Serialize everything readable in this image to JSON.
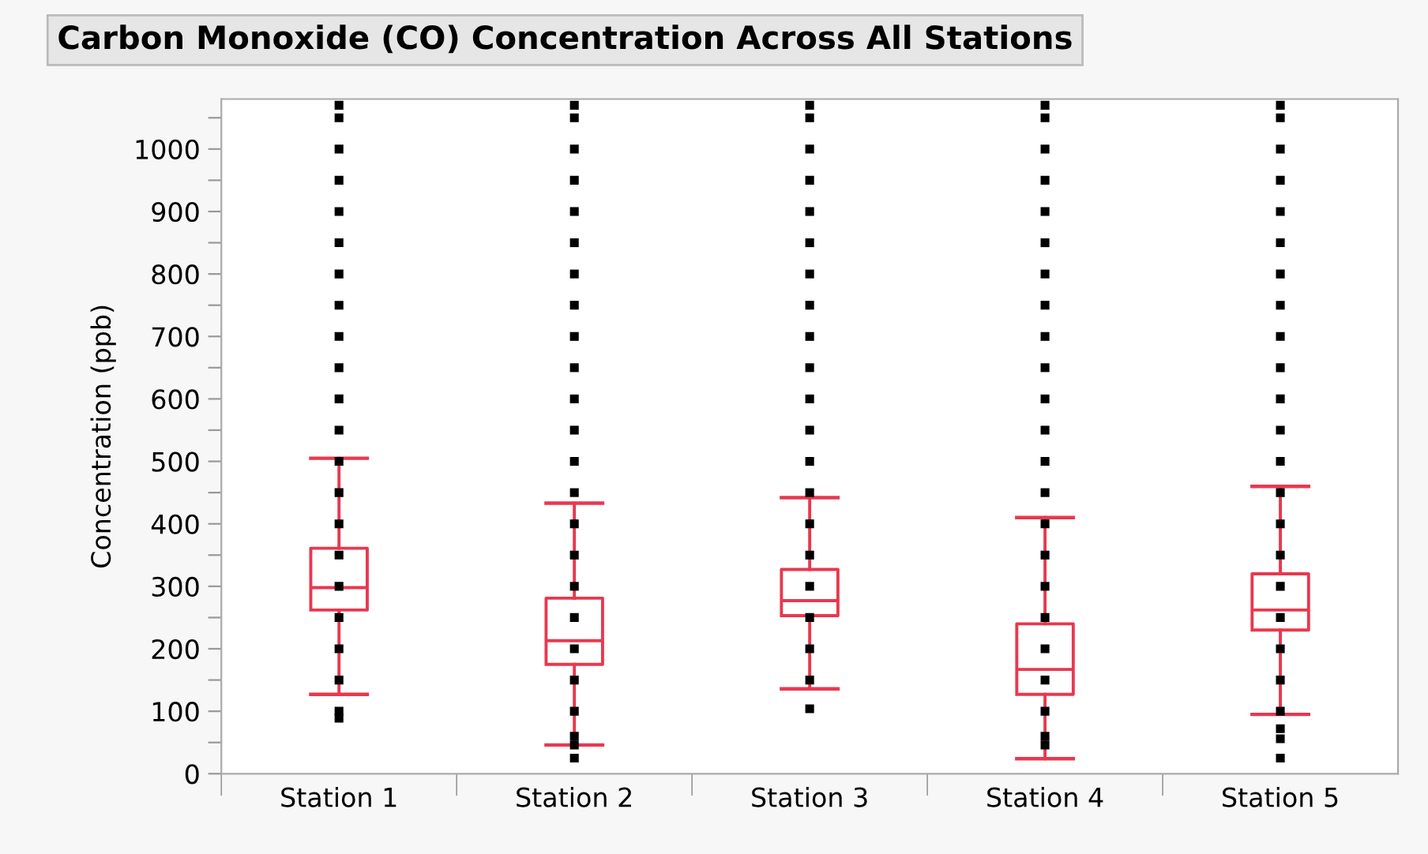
{
  "chart_data": {
    "type": "box",
    "title": "Carbon Monoxide (CO) Concentration Across All Stations",
    "ylabel": "Concentration (ppb)",
    "categories": [
      "Station 1",
      "Station 2",
      "Station 3",
      "Station 4",
      "Station 5"
    ],
    "color": "#e8384f",
    "boxes": [
      {
        "low": 127,
        "q1": 262,
        "median": 298,
        "q3": 361,
        "high": 505
      },
      {
        "low": 46,
        "q1": 175,
        "median": 213,
        "q3": 281,
        "high": 433
      },
      {
        "low": 136,
        "q1": 253,
        "median": 277,
        "q3": 327,
        "high": 442
      },
      {
        "low": 24,
        "q1": 127,
        "median": 167,
        "q3": 240,
        "high": 410
      },
      {
        "low": 95,
        "q1": 230,
        "median": 262,
        "q3": 320,
        "high": 460
      }
    ],
    "series": [
      {
        "type": "scatter",
        "color": "#000000",
        "x": [
          "Station 1",
          "Station 1",
          "Station 1",
          "Station 1",
          "Station 1",
          "Station 1",
          "Station 1",
          "Station 1",
          "Station 1",
          "Station 1",
          "Station 1",
          "Station 1",
          "Station 1",
          "Station 1",
          "Station 1",
          "Station 1",
          "Station 1",
          "Station 1",
          "Station 1",
          "Station 1",
          "Station 1",
          "Station 1"
        ],
        "values": [
          89,
          100,
          150,
          200,
          250,
          300,
          350,
          400,
          450,
          500,
          550,
          600,
          650,
          700,
          750,
          800,
          850,
          900,
          950,
          1000,
          1050,
          1070
        ]
      },
      {
        "type": "scatter",
        "color": "#000000",
        "x": [
          "Station 2",
          "Station 2",
          "Station 2",
          "Station 2",
          "Station 2",
          "Station 2",
          "Station 2",
          "Station 2",
          "Station 2",
          "Station 2",
          "Station 2",
          "Station 2",
          "Station 2",
          "Station 2",
          "Station 2",
          "Station 2",
          "Station 2",
          "Station 2",
          "Station 2",
          "Station 2",
          "Station 2",
          "Station 2",
          "Station 2",
          "Station 2"
        ],
        "values": [
          25,
          46,
          60,
          100,
          150,
          200,
          250,
          300,
          350,
          400,
          450,
          500,
          550,
          600,
          650,
          700,
          750,
          800,
          850,
          900,
          950,
          1000,
          1050,
          1070
        ]
      },
      {
        "type": "scatter",
        "color": "#000000",
        "x": [
          "Station 3",
          "Station 3",
          "Station 3",
          "Station 3",
          "Station 3",
          "Station 3",
          "Station 3",
          "Station 3",
          "Station 3",
          "Station 3",
          "Station 3",
          "Station 3",
          "Station 3",
          "Station 3",
          "Station 3",
          "Station 3",
          "Station 3",
          "Station 3",
          "Station 3",
          "Station 3",
          "Station 3"
        ],
        "values": [
          104,
          150,
          200,
          250,
          300,
          350,
          400,
          450,
          500,
          550,
          600,
          650,
          700,
          750,
          800,
          850,
          900,
          950,
          1000,
          1050,
          1070
        ]
      },
      {
        "type": "scatter",
        "color": "#000000",
        "x": [
          "Station 4",
          "Station 4",
          "Station 4",
          "Station 4",
          "Station 4",
          "Station 4",
          "Station 4",
          "Station 4",
          "Station 4",
          "Station 4",
          "Station 4",
          "Station 4",
          "Station 4",
          "Station 4",
          "Station 4",
          "Station 4",
          "Station 4",
          "Station 4",
          "Station 4",
          "Station 4",
          "Station 4",
          "Station 4",
          "Station 4"
        ],
        "values": [
          46,
          60,
          100,
          150,
          200,
          250,
          300,
          350,
          400,
          450,
          500,
          550,
          600,
          650,
          700,
          750,
          800,
          850,
          900,
          950,
          1000,
          1050,
          1070
        ]
      },
      {
        "type": "scatter",
        "color": "#000000",
        "x": [
          "Station 5",
          "Station 5",
          "Station 5",
          "Station 5",
          "Station 5",
          "Station 5",
          "Station 5",
          "Station 5",
          "Station 5",
          "Station 5",
          "Station 5",
          "Station 5",
          "Station 5",
          "Station 5",
          "Station 5",
          "Station 5",
          "Station 5",
          "Station 5",
          "Station 5",
          "Station 5",
          "Station 5",
          "Station 5",
          "Station 5",
          "Station 5"
        ],
        "values": [
          25,
          56,
          72,
          100,
          150,
          200,
          250,
          300,
          350,
          400,
          450,
          500,
          550,
          600,
          650,
          700,
          750,
          800,
          850,
          900,
          950,
          1000,
          1050,
          1070
        ]
      }
    ],
    "ylim": [
      0,
      1080
    ],
    "yticks": [
      0,
      {
        "value": 50,
        "label": null
      },
      100,
      {
        "value": 150,
        "label": null
      },
      200,
      {
        "value": 250,
        "label": null
      },
      300,
      {
        "value": 350,
        "label": null
      },
      400,
      {
        "value": 450,
        "label": null
      },
      500,
      {
        "value": 550,
        "label": null
      },
      600,
      {
        "value": 650,
        "label": null
      },
      700,
      {
        "value": 750,
        "label": null
      },
      800,
      {
        "value": 850,
        "label": null
      },
      900,
      {
        "value": 950,
        "label": null
      },
      1000,
      {
        "value": 1050,
        "label": null
      }
    ],
    "grid": false,
    "legend": false
  }
}
